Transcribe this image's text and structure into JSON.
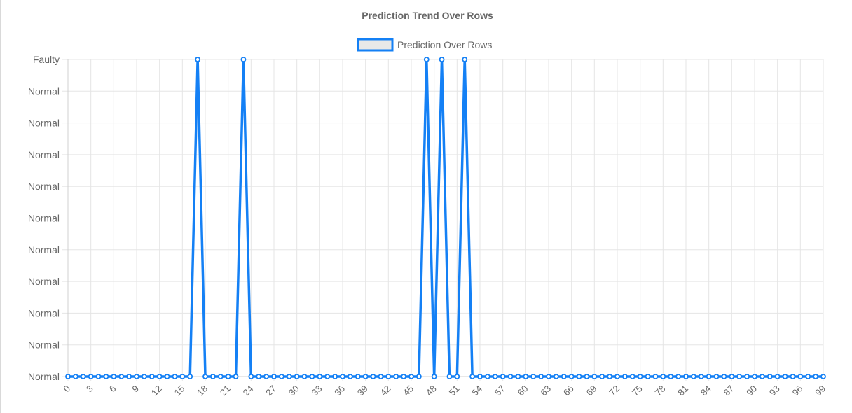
{
  "chart_data": {
    "type": "line",
    "title": "Prediction Trend Over Rows",
    "legend": {
      "label": "Prediction Over Rows",
      "placement": "top-center"
    },
    "series": [
      {
        "name": "Prediction Over Rows",
        "color": "#1480f5",
        "legend_fill": "#e8e8e8",
        "values": [
          0,
          0,
          0,
          0,
          0,
          0,
          0,
          0,
          0,
          0,
          0,
          0,
          0,
          0,
          0,
          0,
          0,
          1,
          0,
          0,
          0,
          0,
          0,
          1,
          0,
          0,
          0,
          0,
          0,
          0,
          0,
          0,
          0,
          0,
          0,
          0,
          0,
          0,
          0,
          0,
          0,
          0,
          0,
          0,
          0,
          0,
          0,
          1,
          0,
          1,
          0,
          0,
          1,
          0,
          0,
          0,
          0,
          0,
          0,
          0,
          0,
          0,
          0,
          0,
          0,
          0,
          0,
          0,
          0,
          0,
          0,
          0,
          0,
          0,
          0,
          0,
          0,
          0,
          0,
          0,
          0,
          0,
          0,
          0,
          0,
          0,
          0,
          0,
          0,
          0,
          0,
          0,
          0,
          0,
          0,
          0,
          0,
          0,
          0,
          0
        ]
      }
    ],
    "x_range": [
      0,
      99
    ],
    "x_tick_labels": [
      "0",
      "3",
      "6",
      "9",
      "12",
      "15",
      "18",
      "21",
      "24",
      "27",
      "30",
      "33",
      "36",
      "39",
      "42",
      "45",
      "48",
      "51",
      "54",
      "57",
      "60",
      "63",
      "66",
      "69",
      "72",
      "75",
      "78",
      "81",
      "84",
      "87",
      "90",
      "93",
      "96",
      "99"
    ],
    "y_range": [
      0,
      1
    ],
    "y_tick_labels": [
      "Faulty",
      "Normal",
      "Normal",
      "Normal",
      "Normal",
      "Normal",
      "Normal",
      "Normal",
      "Normal",
      "Normal",
      "Normal"
    ],
    "grid": true,
    "xlabel": "",
    "ylabel": ""
  }
}
